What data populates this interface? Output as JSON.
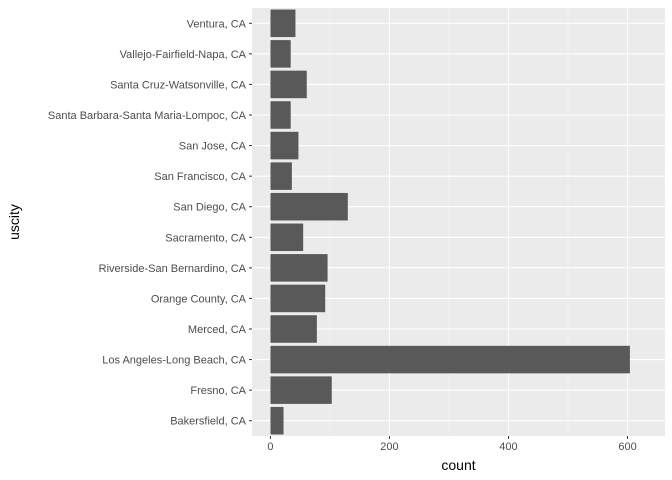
{
  "chart_data": {
    "type": "bar",
    "orientation": "horizontal",
    "xlabel": "count",
    "ylabel": "uscity",
    "xlim": [
      -31,
      663
    ],
    "xticks": [
      0,
      200,
      400,
      600
    ],
    "xtick_labels": [
      "0",
      "200",
      "400",
      "600"
    ],
    "grid": true,
    "categories": [
      "Ventura, CA",
      "Vallejo-Fairfield-Napa, CA",
      "Santa Cruz-Watsonville, CA",
      "Santa Barbara-Santa Maria-Lompoc, CA",
      "San Jose, CA",
      "San Francisco, CA",
      "San Diego, CA",
      "Sacramento, CA",
      "Riverside-San Bernardino, CA",
      "Orange County, CA",
      "Merced, CA",
      "Los Angeles-Long Beach, CA",
      "Fresno, CA",
      "Bakersfield, CA"
    ],
    "values": [
      42,
      34,
      61,
      34,
      47,
      36,
      130,
      55,
      96,
      92,
      78,
      604,
      103,
      22
    ],
    "colors": {
      "panel": "#ebebeb",
      "grid_major": "#ffffff",
      "bar": "#595959",
      "tick_text": "#4d4d4d",
      "tick_mark": "#333333"
    }
  }
}
